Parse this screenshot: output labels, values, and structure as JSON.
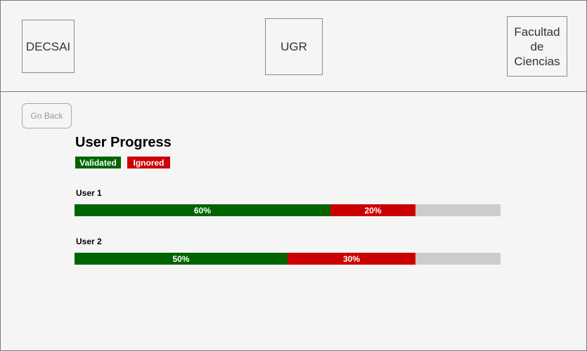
{
  "header": {
    "logos": {
      "decsai": "DECSAI",
      "ugr": "UGR",
      "facultad": "Facultad de Ciencias"
    }
  },
  "nav": {
    "go_back_label": "Go Back"
  },
  "main": {
    "title": "User Progress",
    "legend": {
      "validated_label": "Validated",
      "ignored_label": "Ignored"
    },
    "colors": {
      "validated": "#006400",
      "ignored": "#cc0000",
      "remaining": "#cccccc"
    },
    "users": [
      {
        "name": "User 1",
        "validated_pct": 60,
        "ignored_pct": 20,
        "validated_text": "60%",
        "ignored_text": "20%"
      },
      {
        "name": "User 2",
        "validated_pct": 50,
        "ignored_pct": 30,
        "validated_text": "50%",
        "ignored_text": "30%"
      }
    ]
  }
}
